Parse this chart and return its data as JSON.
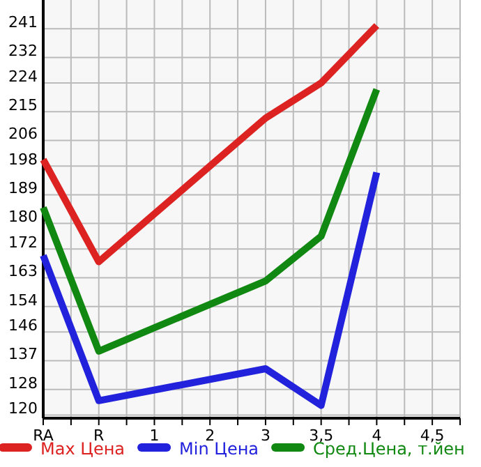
{
  "chart_data": {
    "type": "line",
    "categories": [
      "RA",
      "R",
      "1",
      "2",
      "3",
      "3,5",
      "4",
      "4,5"
    ],
    "ylim": [
      119,
      250
    ],
    "yticks": [
      120,
      128,
      137,
      146,
      154,
      163,
      172,
      180,
      189,
      198,
      206,
      215,
      224,
      232,
      241
    ],
    "grid": true,
    "legend": "bottom",
    "marker": "none",
    "line_style": "solid",
    "series": [
      {
        "name": "Max Цена",
        "color": "#dd2222",
        "values": [
          200,
          168,
          null,
          null,
          213,
          224,
          242,
          null
        ]
      },
      {
        "name": "Min Цена",
        "color": "#2222dd",
        "values": [
          170,
          124.5,
          null,
          null,
          134.5,
          123,
          196,
          null
        ]
      },
      {
        "name": "Сред.Цена, т.йен",
        "color": "#118811",
        "values": [
          185,
          140,
          null,
          null,
          162,
          176,
          222,
          null
        ]
      }
    ]
  }
}
